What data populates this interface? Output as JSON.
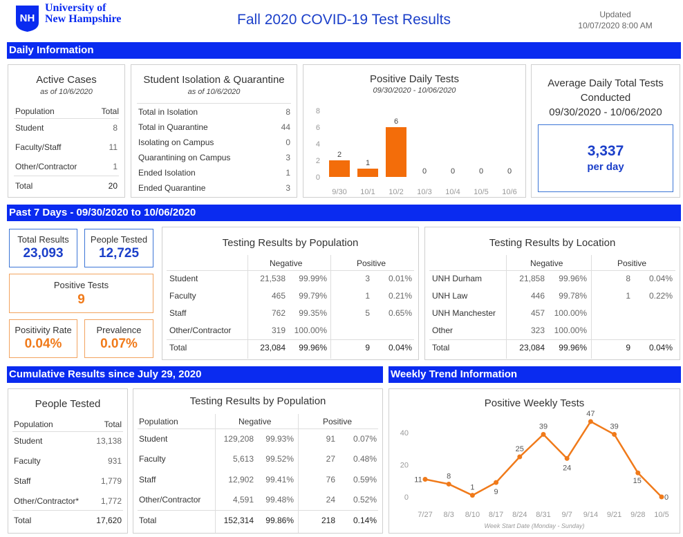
{
  "header": {
    "logo_text": "NH",
    "university_line1": "University of",
    "university_line2": "New Hampshire",
    "title": "Fall 2020 COVID-19 Test Results",
    "updated_label": "Updated",
    "updated_value": "10/07/2020 8:00 AM"
  },
  "colors": {
    "brand_blue": "#0a2bf0",
    "orange": "#f07a1a",
    "value_blue": "#1b3fc9"
  },
  "daily": {
    "section_title": "Daily Information",
    "active": {
      "title": "Active Cases",
      "subtitle": "as of 10/6/2020",
      "col_population": "Population",
      "col_total": "Total",
      "rows": [
        {
          "label": "Student",
          "value": "8"
        },
        {
          "label": "Faculty/Staff",
          "value": "11"
        },
        {
          "label": "Other/Contractor",
          "value": "1"
        }
      ],
      "total_label": "Total",
      "total_value": "20"
    },
    "isolation": {
      "title": "Student Isolation & Quarantine",
      "subtitle": "as of 10/6/2020",
      "rows": [
        {
          "label": "Total in Isolation",
          "value": "8"
        },
        {
          "label": "Total in Quarantine",
          "value": "44"
        },
        {
          "label": "Isolating on Campus",
          "value": "0"
        },
        {
          "label": "Quarantining on Campus",
          "value": "3"
        },
        {
          "label": "Ended Isolation",
          "value": "1"
        },
        {
          "label": "Ended Quarantine",
          "value": "3"
        }
      ]
    },
    "average": {
      "title_line1": "Average Daily Total Tests",
      "title_line2": "Conducted",
      "date_range": "09/30/2020 - 10/06/2020",
      "value": "3,337",
      "unit": "per day"
    }
  },
  "past7": {
    "section_title": "Past 7 Days  - 09/30/2020  to 10/06/2020",
    "total_results_label": "Total Results",
    "total_results_value": "23,093",
    "people_tested_label": "People Tested",
    "people_tested_value": "12,725",
    "positive_tests_label": "Positive Tests",
    "positive_tests_value": "9",
    "positivity_label": "Positivity Rate",
    "positivity_value": "0.04%",
    "prevalence_label": "Prevalence",
    "prevalence_value": "0.07%",
    "by_population": {
      "title": "Testing Results by Population",
      "col_negative": "Negative",
      "col_positive": "Positive",
      "rows": [
        {
          "label": "Student",
          "neg": "21,538",
          "neg_pct": "99.99%",
          "pos": "3",
          "pos_pct": "0.01%"
        },
        {
          "label": "Faculty",
          "neg": "465",
          "neg_pct": "99.79%",
          "pos": "1",
          "pos_pct": "0.21%"
        },
        {
          "label": "Staff",
          "neg": "762",
          "neg_pct": "99.35%",
          "pos": "5",
          "pos_pct": "0.65%"
        },
        {
          "label": "Other/Contractor",
          "neg": "319",
          "neg_pct": "100.00%",
          "pos": "",
          "pos_pct": ""
        }
      ],
      "total": {
        "label": "Total",
        "neg": "23,084",
        "neg_pct": "99.96%",
        "pos": "9",
        "pos_pct": "0.04%"
      }
    },
    "by_location": {
      "title": "Testing Results by Location",
      "col_negative": "Negative",
      "col_positive": "Positive",
      "rows": [
        {
          "label": "UNH Durham",
          "neg": "21,858",
          "neg_pct": "99.96%",
          "pos": "8",
          "pos_pct": "0.04%"
        },
        {
          "label": "UNH Law",
          "neg": "446",
          "neg_pct": "99.78%",
          "pos": "1",
          "pos_pct": "0.22%"
        },
        {
          "label": "UNH Manchester",
          "neg": "457",
          "neg_pct": "100.00%",
          "pos": "",
          "pos_pct": ""
        },
        {
          "label": "Other",
          "neg": "323",
          "neg_pct": "100.00%",
          "pos": "",
          "pos_pct": ""
        }
      ],
      "total": {
        "label": "Total",
        "neg": "23,084",
        "neg_pct": "99.96%",
        "pos": "9",
        "pos_pct": "0.04%"
      }
    }
  },
  "cumulative": {
    "section_title": "Cumulative Results since July 29, 2020",
    "people": {
      "title": "People Tested",
      "col_population": "Population",
      "col_total": "Total",
      "rows": [
        {
          "label": "Student",
          "value": "13,138"
        },
        {
          "label": "Faculty",
          "value": "931"
        },
        {
          "label": "Staff",
          "value": "1,779"
        },
        {
          "label": "Other/Contractor*",
          "value": "1,772"
        }
      ],
      "total_label": "Total",
      "total_value": "17,620"
    },
    "by_population": {
      "title": "Testing Results by Population",
      "col_population": "Population",
      "col_negative": "Negative",
      "col_positive": "Positive",
      "rows": [
        {
          "label": "Student",
          "neg": "129,208",
          "neg_pct": "99.93%",
          "pos": "91",
          "pos_pct": "0.07%"
        },
        {
          "label": "Faculty",
          "neg": "5,613",
          "neg_pct": "99.52%",
          "pos": "27",
          "pos_pct": "0.48%"
        },
        {
          "label": "Staff",
          "neg": "12,902",
          "neg_pct": "99.41%",
          "pos": "76",
          "pos_pct": "0.59%"
        },
        {
          "label": "Other/Contractor",
          "neg": "4,591",
          "neg_pct": "99.48%",
          "pos": "24",
          "pos_pct": "0.52%"
        }
      ],
      "total": {
        "label": "Total",
        "neg": "152,314",
        "neg_pct": "99.86%",
        "pos": "218",
        "pos_pct": "0.14%"
      }
    }
  },
  "weekly": {
    "section_title": "Weekly Trend Information"
  },
  "chart_data": [
    {
      "type": "bar",
      "title": "Positive Daily Tests",
      "subtitle": "09/30/2020 - 10/06/2020",
      "categories": [
        "9/30",
        "10/1",
        "10/2",
        "10/3",
        "10/4",
        "10/5",
        "10/6"
      ],
      "values": [
        2,
        1,
        6,
        0,
        0,
        0,
        0
      ],
      "yticks": [
        "0",
        "2",
        "4",
        "6",
        "8"
      ],
      "ylim": [
        0,
        8
      ],
      "color": "#f36d0a"
    },
    {
      "type": "line",
      "title": "Positive Weekly Tests",
      "xlabel": "Week Start Date (Monday - Sunday)",
      "categories": [
        "7/27",
        "8/3",
        "8/10",
        "8/17",
        "8/24",
        "8/31",
        "9/7",
        "9/14",
        "9/21",
        "9/28",
        "10/5"
      ],
      "values": [
        11,
        8,
        1,
        9,
        25,
        39,
        24,
        47,
        39,
        15,
        0
      ],
      "yticks": [
        "0",
        "20",
        "40"
      ],
      "ylim": [
        0,
        50
      ],
      "color": "#f07a1a"
    }
  ]
}
